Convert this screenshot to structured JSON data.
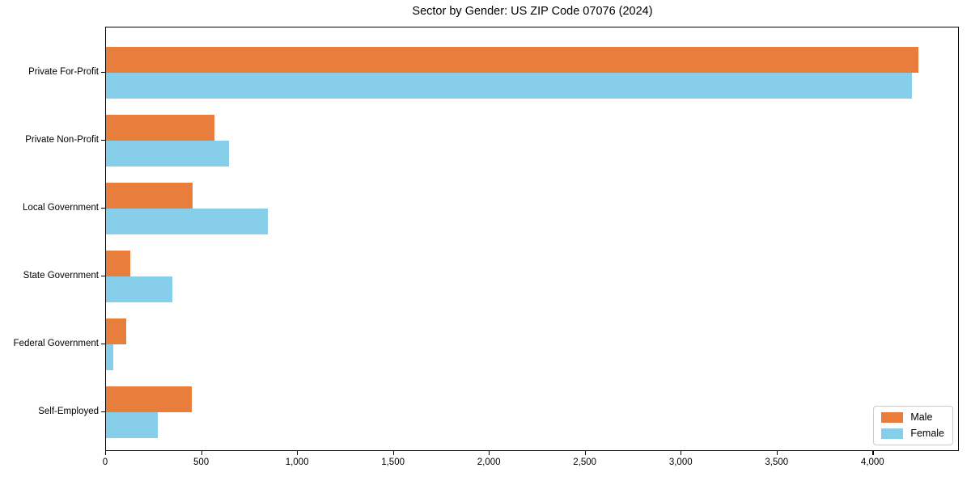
{
  "chart_data": {
    "type": "bar",
    "orientation": "horizontal",
    "title": "Sector by Gender: US ZIP Code 07076 (2024)",
    "xlabel": "",
    "ylabel": "",
    "categories": [
      "Private For-Profit",
      "Private Non-Profit",
      "Local Government",
      "State Government",
      "Federal Government",
      "Self-Employed"
    ],
    "series": [
      {
        "name": "Male",
        "color": "#e87d3c",
        "values": [
          4235,
          565,
          450,
          125,
          105,
          445
        ]
      },
      {
        "name": "Female",
        "color": "#87ceeb",
        "values": [
          4200,
          640,
          845,
          345,
          40,
          270
        ]
      }
    ],
    "xlim": [
      0,
      4450
    ],
    "xtick_values": [
      0,
      500,
      1000,
      1500,
      2000,
      2500,
      3000,
      3500,
      4000
    ],
    "xtick_labels": [
      "0",
      "500",
      "1,000",
      "1,500",
      "2,000",
      "2,500",
      "3,000",
      "3,500",
      "4,000"
    ],
    "grid": false,
    "legend_position": "lower right",
    "colors": {
      "male": "#e87d3c",
      "female": "#87ceeb",
      "axis": "#000000",
      "legend_border": "#cccccc"
    }
  }
}
